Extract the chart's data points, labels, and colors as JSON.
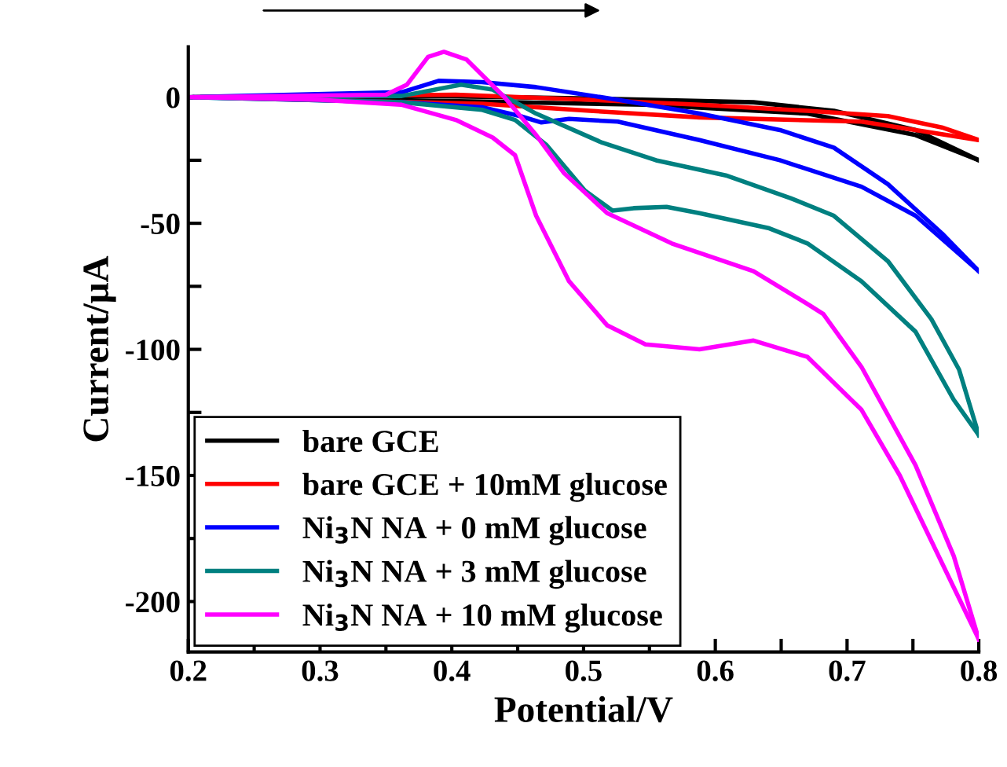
{
  "chart_data": {
    "type": "line",
    "xlabel": "Potential/V",
    "ylabel": "Current/μA",
    "xlim": [
      0.2,
      0.8
    ],
    "ylim": [
      -220,
      20
    ],
    "xticks": [
      0.2,
      {
        "value": 0.25,
        "label": null
      },
      0.3,
      {
        "value": 0.35,
        "label": null
      },
      0.4,
      {
        "value": 0.45,
        "label": null
      },
      0.5,
      {
        "value": 0.55,
        "label": null
      },
      0.6,
      {
        "value": 0.65,
        "label": null
      },
      0.7,
      {
        "value": 0.75,
        "label": null
      },
      0.8
    ],
    "yticks": [
      {
        "value": -200,
        "label": "-200"
      },
      {
        "value": -175,
        "label": null
      },
      {
        "value": -150,
        "label": "-150"
      },
      {
        "value": -125,
        "label": null
      },
      {
        "value": -100,
        "label": "-100"
      },
      {
        "value": -75,
        "label": null
      },
      {
        "value": -50,
        "label": "-50"
      },
      {
        "value": -25,
        "label": null
      },
      0
    ],
    "grid": false,
    "legend": "bottom left",
    "marker": "none",
    "line_style": "solid",
    "series": [
      {
        "name": "bare GCE",
        "color": "#000000",
        "x": [
          0.2,
          0.382,
          0.505,
          0.629,
          0.69,
          0.752,
          0.8
        ],
        "values": [
          0,
          0.5,
          -0.5,
          -2,
          -5.4,
          -13,
          -25
        ]
      },
      {
        "color": "#000000",
        "x": [
          0.205,
          0.423,
          0.547,
          0.67,
          0.752,
          0.8
        ],
        "values": [
          0,
          -1.7,
          -3,
          -6.5,
          -15,
          -25
        ]
      },
      {
        "name": "bare GCE + 10mM glucose",
        "color": "#ff0000",
        "x": [
          0.2,
          0.403,
          0.505,
          0.588,
          0.67,
          0.731,
          0.772,
          0.8
        ],
        "values": [
          0,
          1,
          -1,
          -3,
          -5.4,
          -7.5,
          -12,
          -17
        ]
      },
      {
        "color": "#ff0000",
        "x": [
          0.205,
          0.423,
          0.505,
          0.588,
          0.711,
          0.752,
          0.8
        ],
        "values": [
          0,
          -2.6,
          -5.4,
          -8,
          -9.7,
          -13,
          -17
        ]
      },
      {
        "name": "Ni$_{3}$N NA + 0 mM glucose",
        "color": "#0000ff",
        "x": [
          0.2,
          0.362,
          0.39,
          0.423,
          0.464,
          0.526,
          0.588,
          0.649,
          0.69,
          0.731,
          0.772,
          0.8
        ],
        "values": [
          0,
          2,
          6.5,
          6,
          4,
          -1,
          -6.5,
          -13,
          -20,
          -34.5,
          -54,
          -69
        ]
      },
      {
        "color": "#0000ff",
        "x": [
          0.205,
          0.362,
          0.423,
          0.452,
          0.468,
          0.489,
          0.526,
          0.588,
          0.649,
          0.711,
          0.752,
          0.8
        ],
        "values": [
          0,
          -2,
          -4,
          -7.5,
          -10,
          -8.6,
          -9.7,
          -17,
          -25,
          -35.5,
          -47,
          -69
        ]
      },
      {
        "name": "Ni$_{3}$N NA + 3 mM glucose",
        "color": "#008080",
        "x": [
          0.2,
          0.362,
          0.407,
          0.431,
          0.464,
          0.514,
          0.555,
          0.608,
          0.657,
          0.69,
          0.731,
          0.764,
          0.785,
          0.8
        ],
        "values": [
          0,
          0.5,
          5,
          3,
          -6.5,
          -18,
          -25,
          -31,
          -40,
          -47,
          -65,
          -88,
          -108,
          -134
        ]
      },
      {
        "color": "#008080",
        "x": [
          0.205,
          0.362,
          0.423,
          0.448,
          0.472,
          0.501,
          0.522,
          0.538,
          0.563,
          0.588,
          0.641,
          0.67,
          0.711,
          0.752,
          0.781,
          0.8
        ],
        "values": [
          0,
          -2,
          -5,
          -9,
          -19,
          -37,
          -45,
          -44,
          -43.5,
          -46,
          -52,
          -58,
          -73,
          -93,
          -120,
          -134
        ]
      },
      {
        "name": "Ni$_{3}$N NA + 10 mM glucose",
        "color": "#ff00ff",
        "x": [
          0.2,
          0.35,
          0.366,
          0.382,
          0.394,
          0.411,
          0.44,
          0.464,
          0.485,
          0.518,
          0.567,
          0.629,
          0.67,
          0.682,
          0.711,
          0.752,
          0.781,
          0.8
        ],
        "values": [
          0,
          1,
          5,
          16,
          18,
          15,
          0,
          -15,
          -30,
          -46,
          -58,
          -69,
          -82,
          -86,
          -107,
          -146,
          -182,
          -215
        ]
      },
      {
        "color": "#ff00ff",
        "x": [
          0.205,
          0.3,
          0.362,
          0.403,
          0.431,
          0.448,
          0.464,
          0.489,
          0.518,
          0.547,
          0.588,
          0.629,
          0.67,
          0.711,
          0.74,
          0.8
        ],
        "values": [
          0,
          -1,
          -3,
          -9,
          -16,
          -23,
          -47,
          -73,
          -90.5,
          -98,
          -100,
          -96.5,
          -103,
          -124,
          -150,
          -215
        ]
      }
    ]
  }
}
